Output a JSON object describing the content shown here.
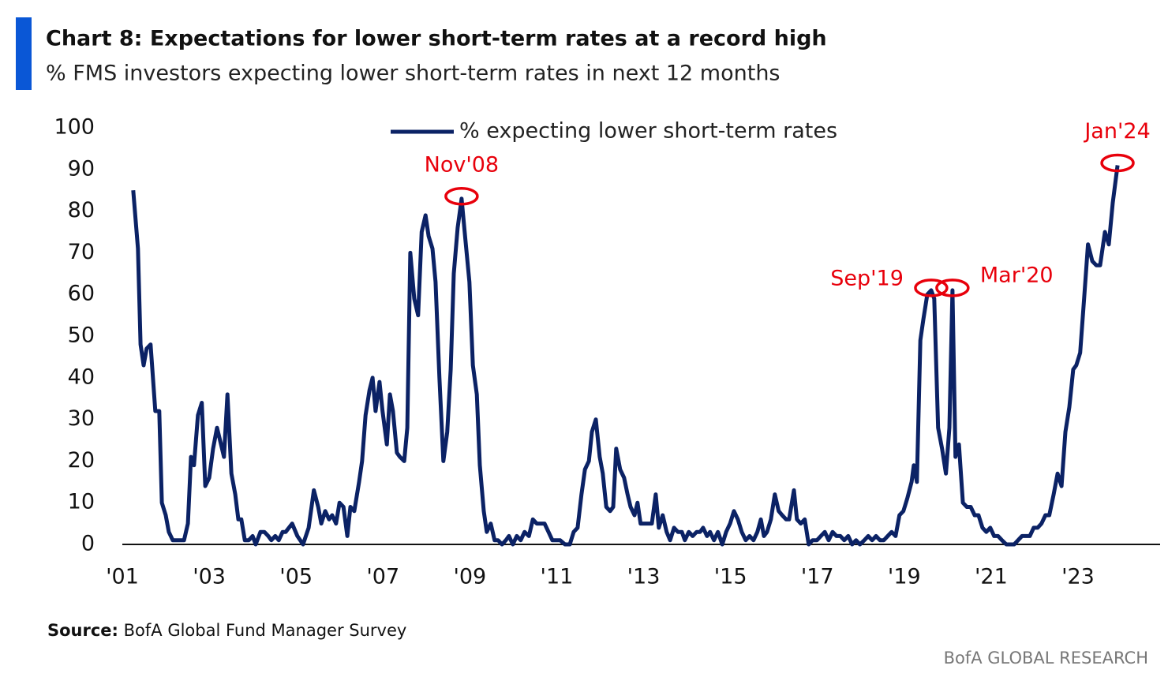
{
  "chart_data": {
    "type": "line",
    "title": "Chart 8: Expectations for lower short-term rates at a record high",
    "subtitle": "% FMS investors expecting lower short-term rates in next 12 months",
    "source_label": "Source:",
    "source": "BofA Global Fund Manager Survey",
    "footer": "BofA GLOBAL RESEARCH",
    "x": [
      2001.25,
      2001.36,
      2001.42,
      2001.49,
      2001.56,
      2001.65,
      2001.76,
      2001.85,
      2001.91,
      2002.0,
      2002.07,
      2002.16,
      2002.33,
      2002.42,
      2002.51,
      2002.58,
      2002.65,
      2002.74,
      2002.83,
      2002.91,
      2003.0,
      2003.09,
      2003.18,
      2003.25,
      2003.34,
      2003.42,
      2003.51,
      2003.6,
      2003.67,
      2003.74,
      2003.82,
      2003.91,
      2004.0,
      2004.07,
      2004.18,
      2004.27,
      2004.36,
      2004.43,
      2004.52,
      2004.6,
      2004.69,
      2004.76,
      2004.91,
      2005.03,
      2005.16,
      2005.29,
      2005.41,
      2005.51,
      2005.58,
      2005.67,
      2005.76,
      2005.83,
      2005.92,
      2006.0,
      2006.09,
      2006.18,
      2006.25,
      2006.34,
      2006.45,
      2006.52,
      2006.6,
      2006.69,
      2006.76,
      2006.83,
      2006.92,
      2006.99,
      2007.09,
      2007.16,
      2007.23,
      2007.32,
      2007.39,
      2007.49,
      2007.56,
      2007.63,
      2007.72,
      2007.81,
      2007.89,
      2007.98,
      2008.05,
      2008.14,
      2008.21,
      2008.3,
      2008.39,
      2008.48,
      2008.56,
      2008.63,
      2008.72,
      2008.81,
      2008.9,
      2008.99,
      2009.07,
      2009.16,
      2009.23,
      2009.32,
      2009.39,
      2009.48,
      2009.57,
      2009.65,
      2009.74,
      2009.83,
      2009.9,
      2009.99,
      2010.08,
      2010.17,
      2010.26,
      2010.36,
      2010.45,
      2010.54,
      2010.63,
      2010.72,
      2010.81,
      2010.9,
      2011.08,
      2011.19,
      2011.3,
      2011.39,
      2011.48,
      2011.57,
      2011.65,
      2011.74,
      2011.81,
      2011.9,
      2011.99,
      2012.06,
      2012.14,
      2012.23,
      2012.3,
      2012.37,
      2012.46,
      2012.55,
      2012.63,
      2012.7,
      2012.79,
      2012.86,
      2012.93,
      2013.03,
      2013.12,
      2013.19,
      2013.28,
      2013.35,
      2013.44,
      2013.53,
      2013.61,
      2013.7,
      2013.79,
      2013.88,
      2013.95,
      2014.04,
      2014.13,
      2014.22,
      2014.3,
      2014.37,
      2014.46,
      2014.53,
      2014.62,
      2014.71,
      2014.81,
      2014.9,
      2014.99,
      2015.08,
      2015.17,
      2015.26,
      2015.35,
      2015.44,
      2015.53,
      2015.62,
      2015.7,
      2015.77,
      2015.84,
      2015.93,
      2016.02,
      2016.11,
      2016.19,
      2016.28,
      2016.35,
      2016.46,
      2016.53,
      2016.62,
      2016.71,
      2016.8,
      2016.89,
      2016.99,
      2017.08,
      2017.17,
      2017.26,
      2017.35,
      2017.44,
      2017.53,
      2017.62,
      2017.71,
      2017.8,
      2017.89,
      2017.98,
      2018.08,
      2018.17,
      2018.26,
      2018.35,
      2018.44,
      2018.53,
      2018.62,
      2018.71,
      2018.8,
      2018.89,
      2018.98,
      2019.07,
      2019.17,
      2019.22,
      2019.29,
      2019.37,
      2019.44,
      2019.53,
      2019.62,
      2019.69,
      2019.78,
      2019.87,
      2019.96,
      2020.04,
      2020.11,
      2020.18,
      2020.26,
      2020.35,
      2020.44,
      2020.53,
      2020.62,
      2020.71,
      2020.8,
      2020.89,
      2020.98,
      2021.07,
      2021.16,
      2021.25,
      2021.35,
      2021.44,
      2021.53,
      2021.62,
      2021.71,
      2021.8,
      2021.89,
      2021.98,
      2022.07,
      2022.16,
      2022.25,
      2022.34,
      2022.44,
      2022.53,
      2022.62,
      2022.71,
      2022.8,
      2022.89,
      2022.96,
      2023.05,
      2023.14,
      2023.23,
      2023.33,
      2023.42,
      2023.51,
      2023.62,
      2023.71,
      2023.8,
      2023.91
    ],
    "series": [
      {
        "name": "% expecting lower short-term rates",
        "color": "#0b2265",
        "values": [
          85,
          71,
          48,
          43,
          47,
          48,
          32,
          32,
          10,
          7,
          3,
          1,
          1,
          1,
          5,
          21,
          19,
          31,
          34,
          14,
          16,
          23,
          28,
          25,
          21,
          36,
          17,
          12,
          6,
          6,
          1,
          1,
          2,
          0,
          3,
          3,
          2,
          1,
          2,
          1,
          3,
          3,
          5,
          2,
          0,
          4,
          13,
          9,
          5,
          8,
          6,
          7,
          5,
          10,
          9,
          2,
          9,
          8,
          15,
          20,
          31,
          37,
          40,
          32,
          39,
          32,
          24,
          36,
          32,
          22,
          21,
          20,
          28,
          70,
          59,
          55,
          75,
          79,
          74,
          71,
          63,
          40,
          20,
          27,
          42,
          65,
          76,
          83,
          73,
          63,
          43,
          36,
          19,
          8,
          3,
          5,
          1,
          1,
          0,
          1,
          2,
          0,
          2,
          1,
          3,
          2,
          6,
          5,
          5,
          5,
          3,
          1,
          1,
          0,
          0,
          3,
          4,
          12,
          18,
          20,
          27,
          30,
          21,
          17,
          9,
          8,
          9,
          23,
          18,
          16,
          12,
          9,
          7,
          10,
          5,
          5,
          5,
          5,
          12,
          4,
          7,
          3,
          1,
          4,
          3,
          3,
          1,
          3,
          2,
          3,
          3,
          4,
          2,
          3,
          1,
          3,
          0,
          3,
          5,
          8,
          6,
          3,
          1,
          2,
          1,
          3,
          6,
          2,
          3,
          6,
          12,
          8,
          7,
          6,
          6,
          13,
          6,
          5,
          6,
          0,
          1,
          1,
          2,
          3,
          1,
          3,
          2,
          2,
          1,
          2,
          0,
          1,
          0,
          1,
          2,
          1,
          2,
          1,
          1,
          2,
          3,
          2,
          7,
          8,
          11,
          15,
          19,
          15,
          49,
          54,
          60,
          61,
          59,
          28,
          23,
          17,
          28,
          61,
          21,
          24,
          10,
          9,
          9,
          7,
          7,
          4,
          3,
          4,
          2,
          2,
          1,
          0,
          0,
          0,
          1,
          2,
          2,
          2,
          4,
          4,
          5,
          7,
          7,
          12,
          17,
          14,
          27,
          33,
          42,
          43,
          46,
          59,
          72,
          68,
          67,
          67,
          75,
          72,
          82,
          91
        ]
      }
    ],
    "annotations": [
      {
        "label": "Nov'08",
        "x": 2008.81,
        "y": 83,
        "position": "above"
      },
      {
        "label": "Sep'19",
        "x": 2019.62,
        "y": 61,
        "position": "left"
      },
      {
        "label": "Mar'20",
        "x": 2020.11,
        "y": 61,
        "position": "right"
      },
      {
        "label": "Jan'24",
        "x": 2023.91,
        "y": 91,
        "position": "above"
      }
    ],
    "annotation_color": "#e8000b",
    "xlim": [
      2001,
      2024.89
    ],
    "xticks": [
      {
        "value": 2001,
        "label": "'01"
      },
      {
        "value": 2003,
        "label": "'03"
      },
      {
        "value": 2005,
        "label": "'05"
      },
      {
        "value": 2007,
        "label": "'07"
      },
      {
        "value": 2009,
        "label": "'09"
      },
      {
        "value": 2011,
        "label": "'11"
      },
      {
        "value": 2013,
        "label": "'13"
      },
      {
        "value": 2015,
        "label": "'15"
      },
      {
        "value": 2017,
        "label": "'17"
      },
      {
        "value": 2019,
        "label": "'19"
      },
      {
        "value": 2021,
        "label": "'21"
      },
      {
        "value": 2023,
        "label": "'23"
      }
    ],
    "ylim": [
      0,
      100
    ],
    "yticks": [
      0,
      10,
      20,
      30,
      40,
      50,
      60,
      70,
      80,
      90,
      100
    ],
    "grid": false,
    "legend": "top"
  }
}
